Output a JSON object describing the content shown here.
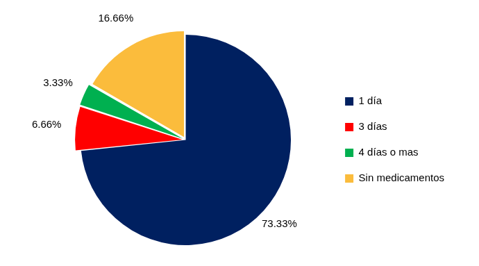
{
  "chart_data": {
    "type": "pie",
    "categories": [
      "1 día",
      "3 días",
      "4 días o mas",
      "Sin medicamentos"
    ],
    "values": [
      73.33,
      6.66,
      3.33,
      16.66
    ],
    "value_labels": [
      "73.33%",
      "6.66%",
      "3.33%",
      "16.66%"
    ],
    "colors": [
      "#002060",
      "#ff0000",
      "#00b050",
      "#fbbc3c"
    ],
    "legend": "right",
    "data_labels": true
  }
}
